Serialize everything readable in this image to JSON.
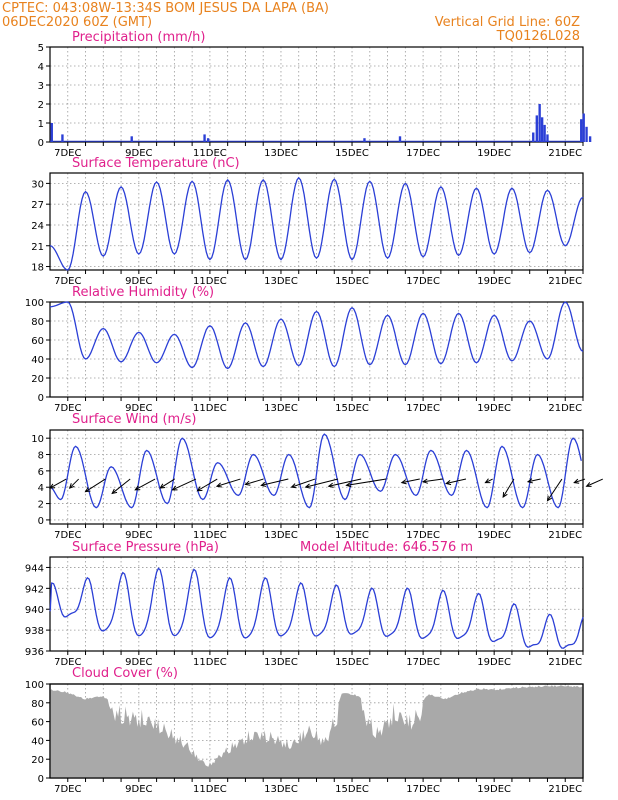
{
  "header": {
    "line1_left": "CPTEC:   043:08W-13:34S   BOM JESUS DA LAPA (BA)",
    "line2_left": "06DEC2020 60Z (GMT)",
    "line2_right": "Vertical Grid Line: 60Z",
    "line3_right": "TQ0126L028"
  },
  "colors": {
    "header": "#e8821e",
    "panel_title": "#e0208c",
    "line": "#2b3fd6",
    "precip_bar": "#2b3fd6",
    "cloud_fill": "#a9a9a9",
    "grid": "#9a9a9a",
    "wind_arrow": "#000000"
  },
  "chart_data": [
    {
      "id": "precip",
      "type": "bar",
      "title": "Precipitation (mm/h)",
      "ylim": [
        0,
        5
      ],
      "yticks": [
        0,
        1,
        2,
        3,
        4,
        5
      ],
      "x_ticks": [
        "7DEC",
        "9DEC",
        "11DEC",
        "13DEC",
        "15DEC",
        "17DEC",
        "19DEC",
        "21DEC"
      ],
      "baseline": 0.04,
      "events": [
        {
          "day": 0.05,
          "value": 1.0
        },
        {
          "day": 0.35,
          "value": 0.4
        },
        {
          "day": 2.3,
          "value": 0.3
        },
        {
          "day": 4.35,
          "value": 0.4
        },
        {
          "day": 4.45,
          "value": 0.2
        },
        {
          "day": 8.85,
          "value": 0.2
        },
        {
          "day": 9.85,
          "value": 0.3
        },
        {
          "day": 13.6,
          "value": 0.5
        },
        {
          "day": 13.7,
          "value": 1.4
        },
        {
          "day": 13.78,
          "value": 2.0
        },
        {
          "day": 13.85,
          "value": 1.3
        },
        {
          "day": 13.92,
          "value": 0.9
        },
        {
          "day": 14.0,
          "value": 0.4
        },
        {
          "day": 14.95,
          "value": 1.2
        },
        {
          "day": 15.02,
          "value": 1.5
        },
        {
          "day": 15.1,
          "value": 0.8
        },
        {
          "day": 15.2,
          "value": 0.3
        }
      ]
    },
    {
      "id": "temp",
      "type": "line",
      "title": "Surface Temperature (nC)",
      "ylim": [
        17.5,
        31.5
      ],
      "yticks": [
        18,
        21,
        24,
        27,
        30
      ],
      "x_ticks": [
        "7DEC",
        "9DEC",
        "11DEC",
        "13DEC",
        "15DEC",
        "17DEC",
        "19DEC",
        "21DEC"
      ],
      "max": [
        28.8,
        29.5,
        30.2,
        30.3,
        30.5,
        30.5,
        30.8,
        30.6,
        30.3,
        30.0,
        29.5,
        29.3,
        29.3,
        29.0,
        28.0,
        27.0
      ],
      "min": [
        17.5,
        19.5,
        19.8,
        19.8,
        19.0,
        19.0,
        19.0,
        19.2,
        19.0,
        19.2,
        19.4,
        19.6,
        19.8,
        20.0,
        21.0,
        22.0,
        23.5
      ]
    },
    {
      "id": "rh",
      "type": "line",
      "title": "Relative Humidity (%)",
      "ylim": [
        0,
        100
      ],
      "yticks": [
        0,
        20,
        40,
        60,
        80,
        100
      ],
      "x_ticks": [
        "7DEC",
        "9DEC",
        "11DEC",
        "13DEC",
        "15DEC",
        "17DEC",
        "19DEC",
        "21DEC"
      ],
      "max": [
        100,
        72,
        68,
        66,
        75,
        78,
        82,
        90,
        94,
        86,
        88,
        88,
        86,
        80,
        100,
        82
      ],
      "min": [
        40,
        37,
        36,
        31,
        30,
        32,
        33,
        32,
        34,
        34,
        35,
        36,
        38,
        40,
        48,
        55
      ]
    },
    {
      "id": "wind",
      "type": "line",
      "title": "Surface Wind (m/s)",
      "ylim": [
        -0.5,
        11
      ],
      "yticks": [
        0,
        2,
        4,
        6,
        8,
        10
      ],
      "x_ticks": [
        "7DEC",
        "9DEC",
        "11DEC",
        "13DEC",
        "15DEC",
        "17DEC",
        "19DEC",
        "21DEC"
      ],
      "max": [
        9.0,
        6.5,
        8.5,
        10.0,
        7.0,
        8.0,
        8.0,
        10.5,
        8.0,
        8.0,
        8.5,
        8.5,
        9.0,
        8.0,
        10.0
      ],
      "min": [
        2.5,
        1.5,
        1.5,
        2.0,
        2.5,
        3.0,
        3.0,
        1.5,
        2.5,
        3.5,
        3.0,
        3.0,
        1.5,
        1.5,
        1.5,
        2.0
      ],
      "arrows": [
        {
          "day": -0.05,
          "u": 1.8,
          "v": 1.0
        },
        {
          "day": 0.3,
          "u": 1.0,
          "v": 1.0
        },
        {
          "day": 1.05,
          "u": 2.2,
          "v": 1.4
        },
        {
          "day": 1.75,
          "u": 2.0,
          "v": 1.6
        },
        {
          "day": 2.45,
          "u": 2.2,
          "v": 1.2
        },
        {
          "day": 3.0,
          "u": 1.6,
          "v": 1.0
        },
        {
          "day": 3.6,
          "u": 2.6,
          "v": 1.2
        },
        {
          "day": 4.2,
          "u": 2.2,
          "v": 1.3
        },
        {
          "day": 4.85,
          "u": 2.6,
          "v": 0.8
        },
        {
          "day": 5.5,
          "u": 2.0,
          "v": 0.6
        },
        {
          "day": 6.2,
          "u": 3.0,
          "v": 0.7
        },
        {
          "day": 6.95,
          "u": 2.6,
          "v": 0.9
        },
        {
          "day": 7.6,
          "u": 3.6,
          "v": 0.9
        },
        {
          "day": 8.25,
          "u": 3.6,
          "v": 0.8
        },
        {
          "day": 8.95,
          "u": 4.4,
          "v": 0.7
        },
        {
          "day": 9.9,
          "u": 2.0,
          "v": 0.4
        },
        {
          "day": 10.55,
          "u": 2.2,
          "v": 0.3
        },
        {
          "day": 11.2,
          "u": 2.2,
          "v": 0.5
        },
        {
          "day": 11.95,
          "u": 0.8,
          "v": 0.4
        },
        {
          "day": 12.55,
          "u": 1.2,
          "v": 2.0
        },
        {
          "day": 13.3,
          "u": 1.4,
          "v": 0.3
        },
        {
          "day": 13.9,
          "u": 1.6,
          "v": 2.4
        },
        {
          "day": 14.55,
          "u": 1.2,
          "v": 0.4
        },
        {
          "day": 15.05,
          "u": 1.8,
          "v": 0.8
        }
      ]
    },
    {
      "id": "pres",
      "type": "line",
      "title": "Surface Pressure (hPa)",
      "subtitle": "Model Altitude: 646.576 m",
      "ylim": [
        936,
        945
      ],
      "yticks": [
        936,
        938,
        940,
        942,
        944
      ],
      "x_ticks": [
        "7DEC",
        "9DEC",
        "11DEC",
        "13DEC",
        "15DEC",
        "17DEC",
        "19DEC",
        "21DEC"
      ],
      "primary_max": [
        942.0,
        942.5,
        943.0,
        943.4,
        943.3,
        942.5,
        942.5,
        942.0,
        941.8,
        941.5,
        941.5,
        941.3,
        941.0,
        940.0,
        939.0,
        939.0
      ],
      "primary_min": [
        939.0,
        937.5,
        937.0,
        937.0,
        936.8,
        936.8,
        937.0,
        937.0,
        937.2,
        937.0,
        936.8,
        936.8,
        936.5,
        936.0,
        936.0,
        936.0
      ]
    },
    {
      "id": "cloud",
      "type": "area",
      "title": "Cloud Cover (%)",
      "ylim": [
        0,
        100
      ],
      "yticks": [
        0,
        20,
        40,
        60,
        80,
        100
      ],
      "x_ticks": [
        "7DEC",
        "9DEC",
        "11DEC",
        "13DEC",
        "15DEC",
        "17DEC",
        "19DEC",
        "21DEC"
      ],
      "envelope": [
        [
          0.0,
          95
        ],
        [
          0.5,
          92
        ],
        [
          1.0,
          85
        ],
        [
          1.5,
          88
        ],
        [
          2.0,
          80
        ],
        [
          2.5,
          75
        ],
        [
          3.0,
          70
        ],
        [
          3.5,
          55
        ],
        [
          4.0,
          40
        ],
        [
          4.3,
          25
        ],
        [
          4.6,
          15
        ],
        [
          5.0,
          30
        ],
        [
          5.5,
          45
        ],
        [
          6.0,
          55
        ],
        [
          6.5,
          50
        ],
        [
          7.0,
          40
        ],
        [
          7.5,
          60
        ],
        [
          8.0,
          45
        ],
        [
          8.5,
          92
        ],
        [
          9.0,
          88
        ],
        [
          9.5,
          55
        ],
        [
          10.0,
          80
        ],
        [
          10.5,
          70
        ],
        [
          11.0,
          90
        ],
        [
          11.5,
          85
        ],
        [
          12.0,
          92
        ],
        [
          12.5,
          96
        ],
        [
          13.0,
          95
        ],
        [
          13.5,
          97
        ],
        [
          14.0,
          98
        ],
        [
          14.5,
          99
        ],
        [
          15.0,
          99
        ],
        [
          15.5,
          98
        ]
      ]
    }
  ]
}
